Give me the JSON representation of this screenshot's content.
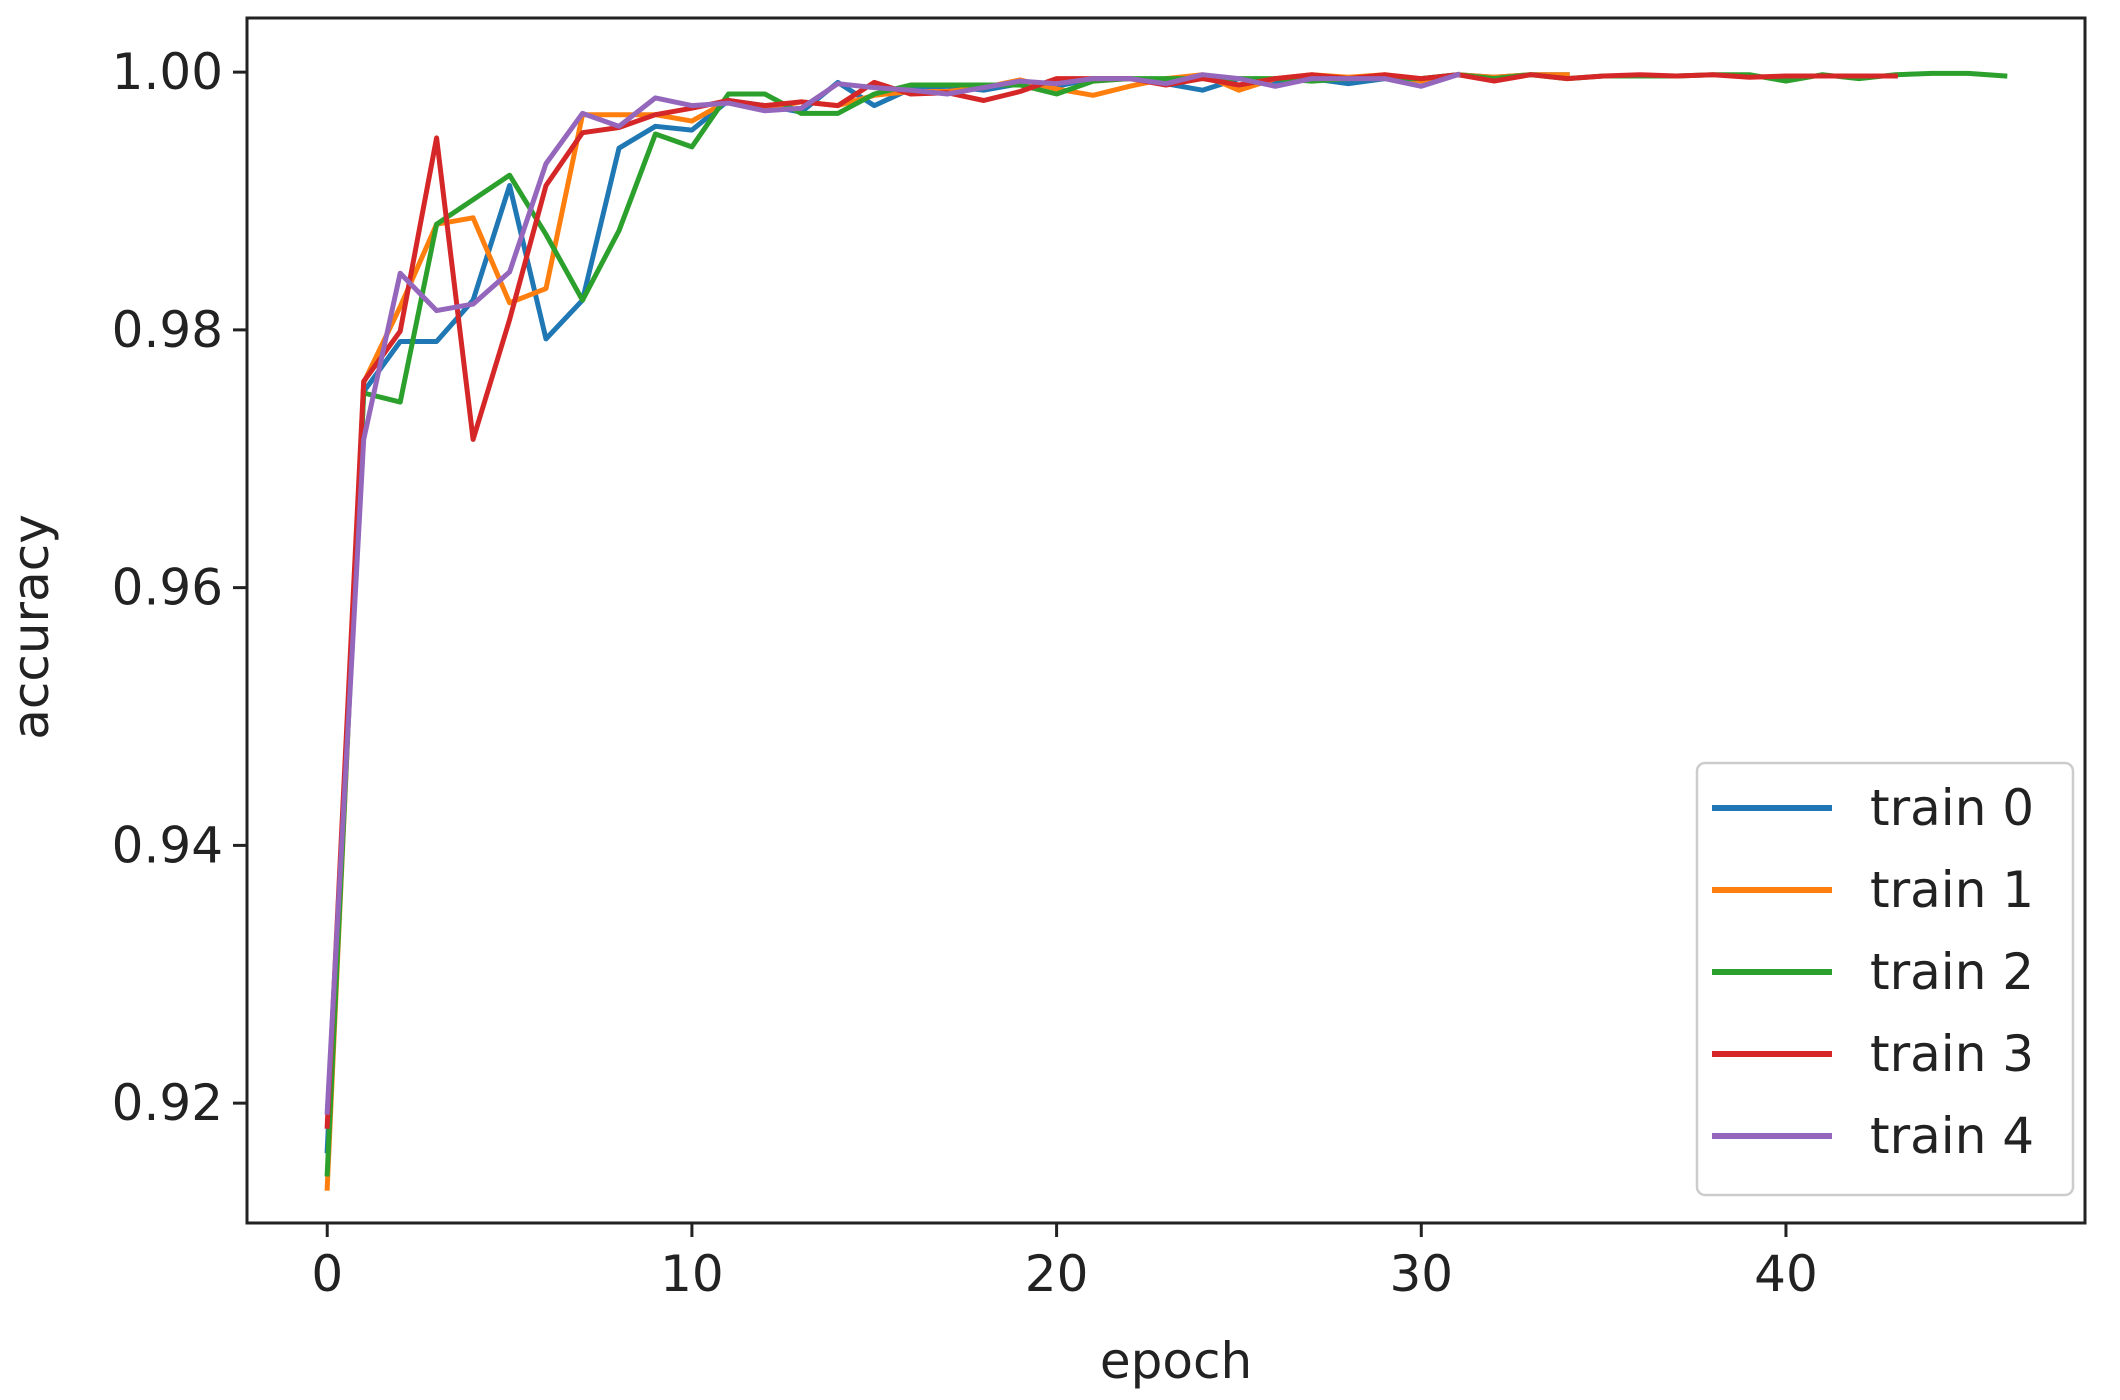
{
  "chart_data": {
    "type": "line",
    "xlabel": "epoch",
    "ylabel": "accuracy",
    "xlim": [
      -2.2,
      48.2
    ],
    "ylim": [
      0.9107,
      1.0042
    ],
    "xticks": [
      0,
      10,
      20,
      30,
      40
    ],
    "xtick_labels": [
      "0",
      "10",
      "20",
      "30",
      "40"
    ],
    "yticks": [
      0.92,
      0.94,
      0.96,
      0.98,
      1.0
    ],
    "ytick_labels": [
      "0.92",
      "0.94",
      "0.96",
      "0.98",
      "1.00"
    ],
    "grid": false,
    "legend_position": "lower right",
    "series": [
      {
        "name": "train 0",
        "color": "#1f77b4",
        "x": [
          0,
          1,
          2,
          3,
          4,
          5,
          6,
          7,
          8,
          9,
          10,
          11,
          12,
          13,
          14,
          15,
          16,
          17,
          18,
          19,
          20,
          21,
          22,
          23,
          24,
          25,
          26,
          27,
          28,
          29,
          30,
          31,
          32,
          33,
          34
        ],
        "y": [
          0.9163,
          0.9752,
          0.9791,
          0.9791,
          0.9823,
          0.9912,
          0.9793,
          0.9823,
          0.9941,
          0.9958,
          0.9955,
          0.9978,
          0.9974,
          0.9969,
          0.9992,
          0.9974,
          0.9987,
          0.9989,
          0.9986,
          0.9991,
          0.9989,
          0.9995,
          0.9995,
          0.9991,
          0.9986,
          0.9995,
          0.9993,
          0.9995,
          0.9991,
          0.9995,
          0.9995,
          0.9998,
          0.9996,
          0.9998,
          0.9998
        ]
      },
      {
        "name": "train 1",
        "color": "#ff7f0e",
        "x": [
          0,
          1,
          2,
          3,
          4,
          5,
          6,
          7,
          8,
          9,
          10,
          11,
          12,
          13,
          14,
          15,
          16,
          17,
          18,
          19,
          20,
          21,
          22,
          23,
          24,
          25,
          26,
          27,
          28,
          29,
          30,
          31,
          32,
          33,
          34
        ],
        "y": [
          0.9134,
          0.9759,
          0.9818,
          0.9882,
          0.9887,
          0.9821,
          0.9832,
          0.9967,
          0.9967,
          0.9967,
          0.9962,
          0.9978,
          0.9971,
          0.9977,
          0.9974,
          0.9982,
          0.9985,
          0.9985,
          0.9988,
          0.9994,
          0.9987,
          0.9982,
          0.9989,
          0.9995,
          0.9998,
          0.9986,
          0.9995,
          0.9998,
          0.9996,
          0.9998,
          0.9993,
          0.9998,
          0.9996,
          0.9998,
          0.9998
        ]
      },
      {
        "name": "train 2",
        "color": "#2ca02c",
        "x": [
          0,
          1,
          2,
          3,
          4,
          5,
          6,
          7,
          8,
          9,
          10,
          11,
          12,
          13,
          14,
          15,
          16,
          17,
          18,
          19,
          20,
          21,
          22,
          23,
          24,
          25,
          26,
          27,
          28,
          29,
          30,
          31,
          32,
          33,
          34,
          35,
          36,
          37,
          38,
          39,
          40,
          41,
          42,
          43,
          44,
          45,
          46
        ],
        "y": [
          0.9145,
          0.9751,
          0.9744,
          0.9882,
          0.9901,
          0.992,
          0.9874,
          0.9823,
          0.9877,
          0.9952,
          0.9942,
          0.9983,
          0.9983,
          0.9968,
          0.9968,
          0.9983,
          0.999,
          0.999,
          0.999,
          0.999,
          0.9983,
          0.9993,
          0.9995,
          0.9995,
          0.9995,
          0.9995,
          0.9995,
          0.9993,
          0.9995,
          0.9995,
          0.9995,
          0.9998,
          0.9995,
          0.9998,
          0.9995,
          0.9997,
          0.9997,
          0.9997,
          0.9998,
          0.9998,
          0.9993,
          0.9998,
          0.9995,
          0.9998,
          0.9999,
          0.9999,
          0.9997
        ]
      },
      {
        "name": "train 3",
        "color": "#d62728",
        "x": [
          0,
          1,
          2,
          3,
          4,
          5,
          6,
          7,
          8,
          9,
          10,
          11,
          12,
          13,
          14,
          15,
          16,
          17,
          18,
          19,
          20,
          21,
          22,
          23,
          24,
          25,
          26,
          27,
          28,
          29,
          30,
          31,
          32,
          33,
          34,
          35,
          36,
          37,
          38,
          39,
          40,
          41,
          42,
          43
        ],
        "y": [
          0.9182,
          0.976,
          0.9799,
          0.9949,
          0.9715,
          0.9808,
          0.9912,
          0.9953,
          0.9957,
          0.9967,
          0.9972,
          0.9978,
          0.9974,
          0.9977,
          0.9974,
          0.9992,
          0.9983,
          0.9984,
          0.9978,
          0.9985,
          0.9995,
          0.9995,
          0.9995,
          0.999,
          0.9995,
          0.999,
          0.9995,
          0.9998,
          0.9995,
          0.9998,
          0.9995,
          0.9998,
          0.9993,
          0.9998,
          0.9995,
          0.9997,
          0.9998,
          0.9997,
          0.9998,
          0.9996,
          0.9997,
          0.9997,
          0.9997,
          0.9997
        ]
      },
      {
        "name": "train 4",
        "color": "#9467bd",
        "x": [
          0,
          1,
          2,
          3,
          4,
          5,
          6,
          7,
          8,
          9,
          10,
          11,
          12,
          13,
          14,
          15,
          16,
          17,
          18,
          19,
          20,
          21,
          22,
          23,
          24,
          25,
          26,
          27,
          28,
          29,
          30,
          31
        ],
        "y": [
          0.9193,
          0.9715,
          0.9844,
          0.9815,
          0.982,
          0.9845,
          0.9929,
          0.9968,
          0.9958,
          0.998,
          0.9974,
          0.9976,
          0.997,
          0.9972,
          0.9991,
          0.9988,
          0.9986,
          0.9983,
          0.9988,
          0.9993,
          0.9991,
          0.9995,
          0.9995,
          0.9991,
          0.9998,
          0.9995,
          0.9989,
          0.9995,
          0.9995,
          0.9995,
          0.9989,
          0.9998
        ]
      }
    ]
  }
}
